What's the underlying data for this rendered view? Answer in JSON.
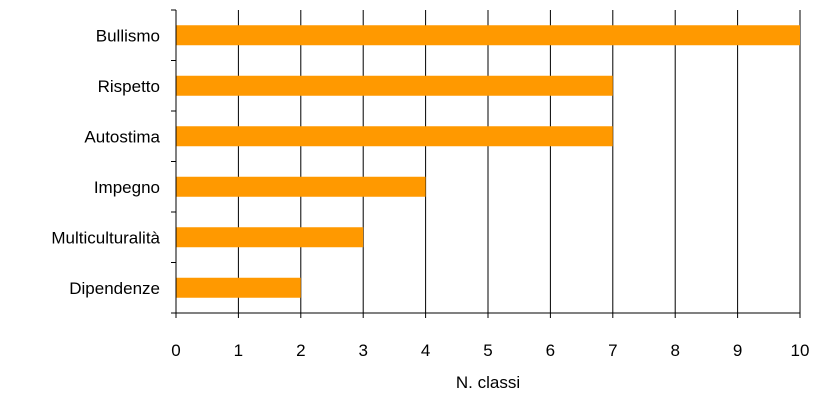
{
  "chart_data": {
    "type": "bar",
    "orientation": "horizontal",
    "categories": [
      "Bullismo",
      "Rispetto",
      "Autostima",
      "Impegno",
      "Multiculturalità",
      "Dipendenze"
    ],
    "values": [
      10,
      7,
      7,
      4,
      3,
      2
    ],
    "xlabel": "N. classi",
    "xlim": [
      0,
      10
    ],
    "xticks": [
      0,
      1,
      2,
      3,
      4,
      5,
      6,
      7,
      8,
      9,
      10
    ],
    "grid": "vertical",
    "legend": "none",
    "bar_color": "#ff9900"
  }
}
